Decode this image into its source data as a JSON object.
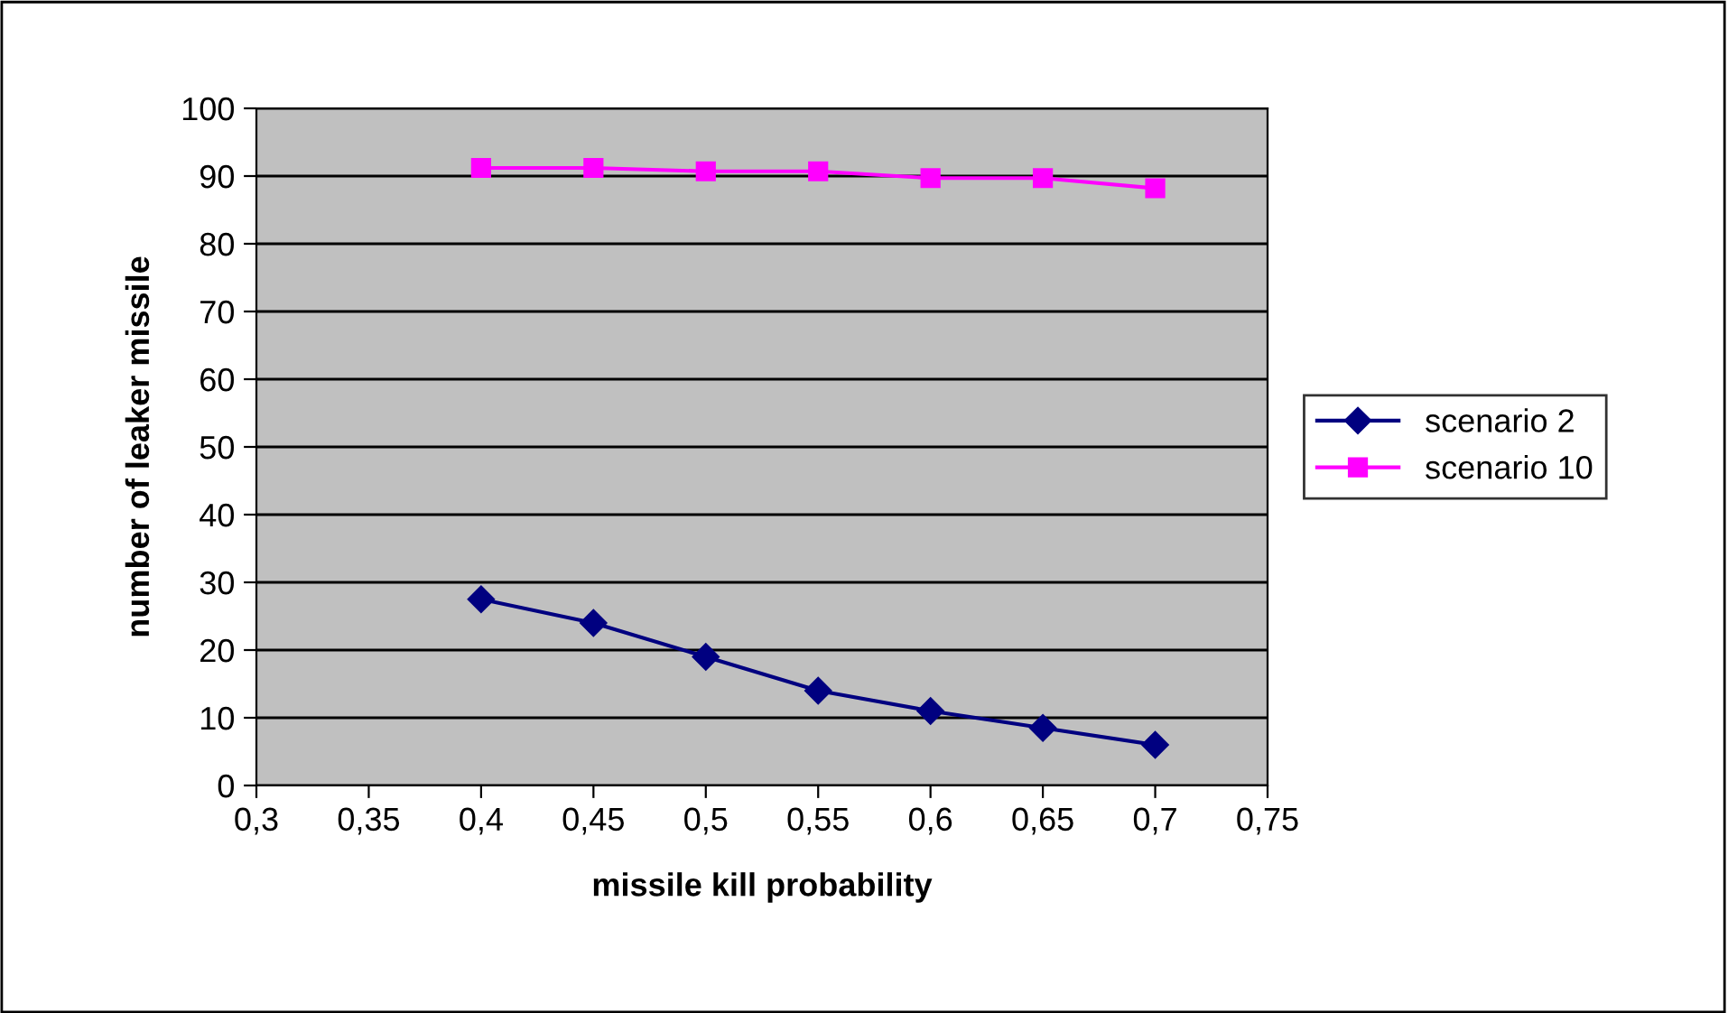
{
  "chart_data": {
    "type": "line",
    "xlabel": "missile kill probability",
    "ylabel": "number of leaker missile",
    "x": [
      0.4,
      0.45,
      0.5,
      0.55,
      0.6,
      0.65,
      0.7
    ],
    "series": [
      {
        "name": "scenario 2",
        "color": "#000080",
        "marker": "diamond",
        "values": [
          27.5,
          24,
          19,
          14,
          11,
          8.5,
          6
        ]
      },
      {
        "name": "scenario 10",
        "color": "#ff00ff",
        "marker": "square",
        "values": [
          91.2,
          91.2,
          90.7,
          90.7,
          89.7,
          89.7,
          88.2
        ]
      }
    ],
    "xlim": [
      0.3,
      0.75
    ],
    "xticks": [
      {
        "value": 0.3,
        "label": "0,3"
      },
      {
        "value": 0.35,
        "label": "0,35"
      },
      {
        "value": 0.4,
        "label": "0,4"
      },
      {
        "value": 0.45,
        "label": "0,45"
      },
      {
        "value": 0.5,
        "label": "0,5"
      },
      {
        "value": 0.55,
        "label": "0,55"
      },
      {
        "value": 0.6,
        "label": "0,6"
      },
      {
        "value": 0.65,
        "label": "0,65"
      },
      {
        "value": 0.7,
        "label": "0,7"
      },
      {
        "value": 0.75,
        "label": "0,75"
      }
    ],
    "ylim": [
      0,
      100
    ],
    "yticks": [
      0,
      10,
      20,
      30,
      40,
      50,
      60,
      70,
      80,
      90,
      100
    ],
    "grid": "y",
    "legend": "right",
    "line_style": "solid"
  }
}
